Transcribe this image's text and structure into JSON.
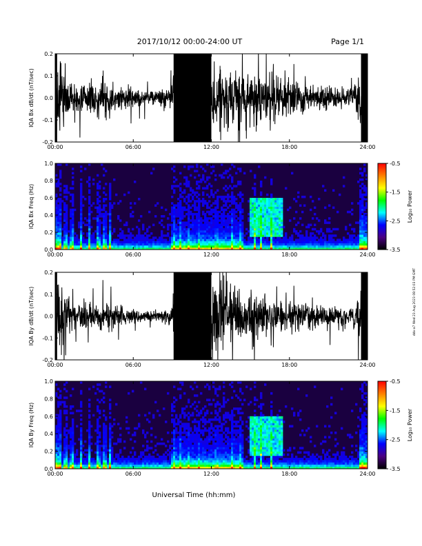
{
  "header": {
    "title": "2017/10/12  00:00-24:00 UT",
    "page": "Page 1/1"
  },
  "footer": {
    "xlabel": "Universal Time (hh:mm)"
  },
  "side_note": "ddv-a7 Wed 23 Aug 2023 08:52:03 PM GMT",
  "colors": {
    "trace": "#000000",
    "spectrogram_background": "#1a0040",
    "colorbar": [
      "#000000",
      "#4b0082",
      "#0000ff",
      "#00ffff",
      "#00ff00",
      "#ffff00",
      "#ff8000",
      "#ff0000"
    ]
  },
  "chart_data": [
    {
      "type": "line",
      "title": "",
      "xlabel": "",
      "ylabel": "IQA Bx dB/dt (nT/sec)",
      "xlim": [
        0,
        24
      ],
      "ylim": [
        -0.2,
        0.2
      ],
      "xticks": [
        "00:00",
        "06:00",
        "12:00",
        "18:00",
        "24:00"
      ],
      "yticks": [
        "-0.2",
        "-0.1",
        "0.0",
        "0.1",
        "0.2"
      ],
      "envelope": {
        "hour": [
          0,
          0.5,
          1,
          2,
          3,
          4,
          5,
          6,
          7,
          8,
          9,
          9.1,
          10,
          11,
          12,
          13,
          14,
          15,
          16,
          17,
          18,
          19,
          20,
          21,
          22,
          23,
          23.5,
          24
        ],
        "amplitude_nT_per_s": [
          0.2,
          0.2,
          0.12,
          0.09,
          0.08,
          0.1,
          0.06,
          0.05,
          0.04,
          0.04,
          0.06,
          0.2,
          0.2,
          0.2,
          0.2,
          0.2,
          0.15,
          0.13,
          0.14,
          0.12,
          0.1,
          0.09,
          0.07,
          0.06,
          0.06,
          0.06,
          0.2,
          0.2
        ]
      }
    },
    {
      "type": "heatmap",
      "title": "",
      "xlabel": "",
      "ylabel": "IQA Bx Freq (Hz)",
      "xlim": [
        0,
        24
      ],
      "ylim": [
        0,
        1.0
      ],
      "xticks": [
        "00:00",
        "06:00",
        "12:00",
        "18:00",
        "24:00"
      ],
      "yticks": [
        "0.0",
        "0.2",
        "0.4",
        "0.6",
        "0.8",
        "1.0"
      ],
      "colorbar": {
        "label": "Log₁₀ Power",
        "range": [
          -3.5,
          -0.5
        ],
        "ticks": [
          "-0.5",
          "-1.5",
          "-2.5",
          "-3.5"
        ]
      }
    },
    {
      "type": "line",
      "title": "",
      "xlabel": "",
      "ylabel": "IQA By dB/dt (nT/sec)",
      "xlim": [
        0,
        24
      ],
      "ylim": [
        -0.2,
        0.2
      ],
      "xticks": [
        "00:00",
        "06:00",
        "12:00",
        "18:00",
        "24:00"
      ],
      "yticks": [
        "-0.2",
        "-0.1",
        "0.0",
        "0.1",
        "0.2"
      ],
      "envelope": {
        "hour": [
          0,
          0.5,
          1,
          2,
          3,
          4,
          5,
          6,
          7,
          8,
          9,
          9.1,
          10,
          11,
          12,
          13,
          14,
          15,
          16,
          17,
          18,
          19,
          20,
          21,
          22,
          23,
          23.5,
          24
        ],
        "amplitude_nT_per_s": [
          0.2,
          0.2,
          0.1,
          0.08,
          0.07,
          0.09,
          0.05,
          0.04,
          0.03,
          0.03,
          0.05,
          0.2,
          0.2,
          0.2,
          0.2,
          0.2,
          0.15,
          0.12,
          0.12,
          0.1,
          0.08,
          0.07,
          0.06,
          0.05,
          0.05,
          0.05,
          0.2,
          0.2
        ]
      }
    },
    {
      "type": "heatmap",
      "title": "",
      "xlabel": "",
      "ylabel": "IQA By Freq (Hz)",
      "xlim": [
        0,
        24
      ],
      "ylim": [
        0,
        1.0
      ],
      "xticks": [
        "00:00",
        "06:00",
        "12:00",
        "18:00",
        "24:00"
      ],
      "yticks": [
        "0.0",
        "0.2",
        "0.4",
        "0.6",
        "0.8",
        "1.0"
      ],
      "colorbar": {
        "label": "Log₁₀ Power",
        "range": [
          -3.5,
          -0.5
        ],
        "ticks": [
          "-0.5",
          "-1.5",
          "-2.5",
          "-3.5"
        ]
      }
    }
  ]
}
